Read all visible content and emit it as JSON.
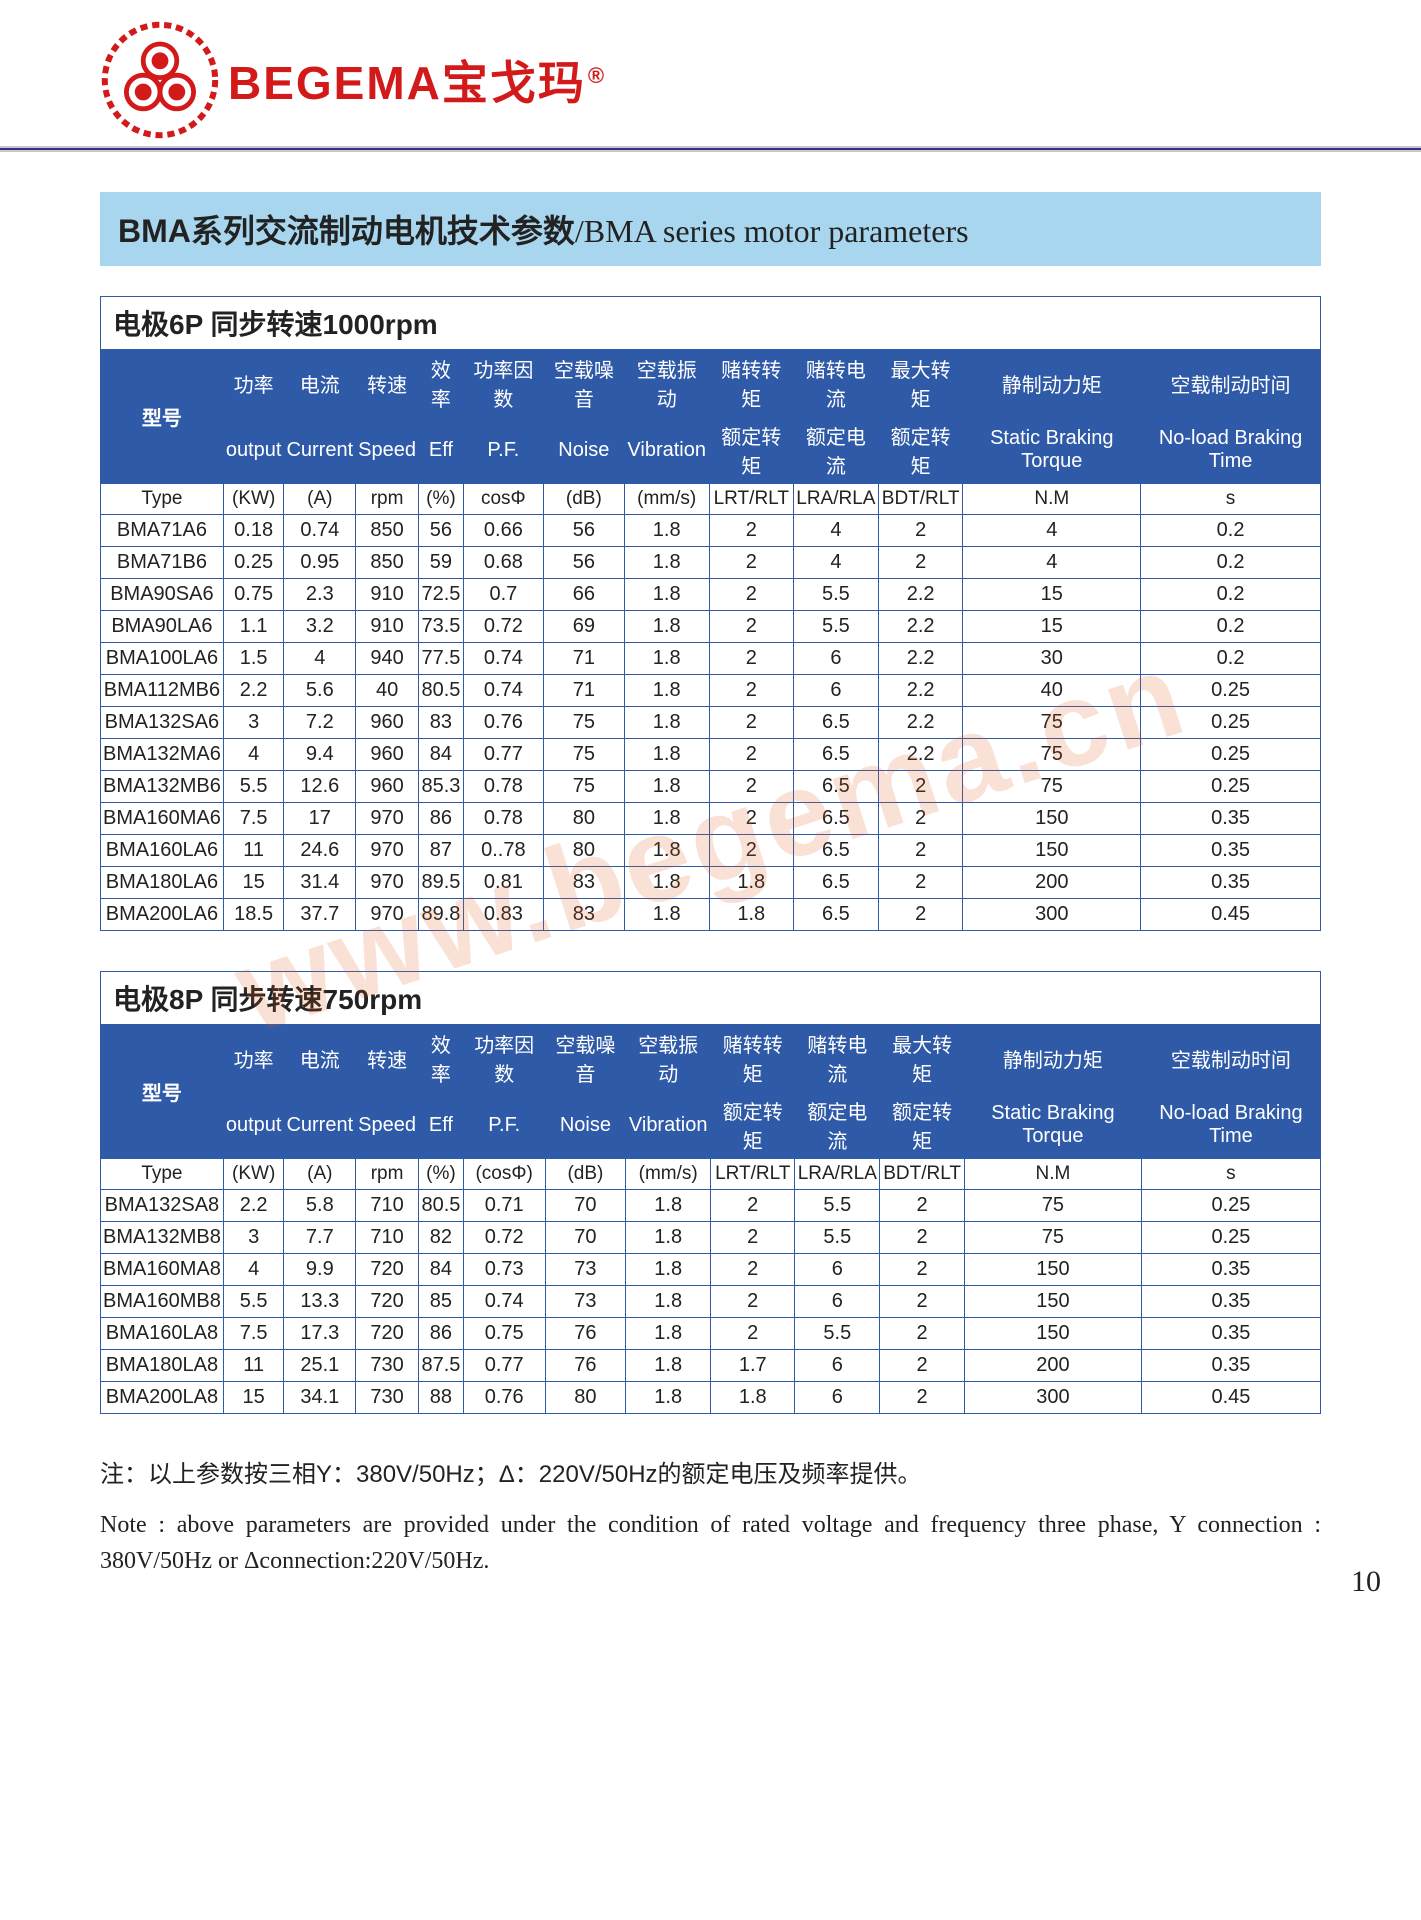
{
  "brand": {
    "en": "BEGEMA",
    "cn": "宝戈玛",
    "reg": "®",
    "color_brand": "#d21a1a",
    "color_rule": "#3a2f8a",
    "logo_stroke": "#d21a1a"
  },
  "title": {
    "cn": "BMA系列交流制动电机技术参数",
    "sep": "/",
    "en": "BMA series motor parameters",
    "band_bg": "#a7d6ee"
  },
  "theme": {
    "header_bg": "#2f5aa8",
    "header_fg": "#ffffff",
    "border": "#2f5aa8"
  },
  "watermark": "www.begema.cn",
  "page_number": "10",
  "notes": {
    "cn": "注：以上参数按三相Y：380V/50Hz；Δ：220V/50Hz的额定电压及频率提供。",
    "en": "Note : above parameters are provided under the condition of rated voltage and frequency three phase, Y connection : 380V/50Hz or Δconnection:220V/50Hz."
  },
  "header_labels": {
    "model_cn": "型号",
    "row1_cn": [
      "功率",
      "电流",
      "转速",
      "效率",
      "功率因数",
      "空载噪音",
      "空载振动",
      "赌转转矩",
      "赌转电流",
      "最大转矩",
      "静制动力矩",
      "空载制动时间"
    ],
    "row2_en": [
      "output",
      "Current",
      "Speed",
      "Eff",
      "P.F.",
      "Noise",
      "Vibration",
      "额定转矩",
      "额定电流",
      "额定转矩",
      "Static Braking Torque",
      "No-load Braking Time"
    ],
    "units": [
      "Type",
      "(KW)",
      "(A)",
      "rpm",
      "(%)",
      "cosΦ",
      "(dB)",
      "(mm/s)",
      "LRT/RLT",
      "LRA/RLA",
      "BDT/RLT",
      "N.M",
      "s"
    ],
    "units_8p": [
      "Type",
      "(KW)",
      "(A)",
      "rpm",
      "(%)",
      "(cosΦ)",
      "(dB)",
      "(mm/s)",
      "LRT/RLT",
      "LRA/RLA",
      "BDT/RLT",
      "N.M",
      "s"
    ]
  },
  "table6p": {
    "caption": "电极6P 同步转速1000rpm",
    "rows": [
      [
        "BMA71A6",
        "0.18",
        "0.74",
        "850",
        "56",
        "0.66",
        "56",
        "1.8",
        "2",
        "4",
        "2",
        "4",
        "0.2"
      ],
      [
        "BMA71B6",
        "0.25",
        "0.95",
        "850",
        "59",
        "0.68",
        "56",
        "1.8",
        "2",
        "4",
        "2",
        "4",
        "0.2"
      ],
      [
        "BMA90SA6",
        "0.75",
        "2.3",
        "910",
        "72.5",
        "0.7",
        "66",
        "1.8",
        "2",
        "5.5",
        "2.2",
        "15",
        "0.2"
      ],
      [
        "BMA90LA6",
        "1.1",
        "3.2",
        "910",
        "73.5",
        "0.72",
        "69",
        "1.8",
        "2",
        "5.5",
        "2.2",
        "15",
        "0.2"
      ],
      [
        "BMA100LA6",
        "1.5",
        "4",
        "940",
        "77.5",
        "0.74",
        "71",
        "1.8",
        "2",
        "6",
        "2.2",
        "30",
        "0.2"
      ],
      [
        "BMA112MB6",
        "2.2",
        "5.6",
        "40",
        "80.5",
        "0.74",
        "71",
        "1.8",
        "2",
        "6",
        "2.2",
        "40",
        "0.25"
      ],
      [
        "BMA132SA6",
        "3",
        "7.2",
        "960",
        "83",
        "0.76",
        "75",
        "1.8",
        "2",
        "6.5",
        "2.2",
        "75",
        "0.25"
      ],
      [
        "BMA132MA6",
        "4",
        "9.4",
        "960",
        "84",
        "0.77",
        "75",
        "1.8",
        "2",
        "6.5",
        "2.2",
        "75",
        "0.25"
      ],
      [
        "BMA132MB6",
        "5.5",
        "12.6",
        "960",
        "85.3",
        "0.78",
        "75",
        "1.8",
        "2",
        "6.5",
        "2",
        "75",
        "0.25"
      ],
      [
        "BMA160MA6",
        "7.5",
        "17",
        "970",
        "86",
        "0.78",
        "80",
        "1.8",
        "2",
        "6.5",
        "2",
        "150",
        "0.35"
      ],
      [
        "BMA160LA6",
        "11",
        "24.6",
        "970",
        "87",
        "0..78",
        "80",
        "1.8",
        "2",
        "6.5",
        "2",
        "150",
        "0.35"
      ],
      [
        "BMA180LA6",
        "15",
        "31.4",
        "970",
        "89.5",
        "0.81",
        "83",
        "1.8",
        "1.8",
        "6.5",
        "2",
        "200",
        "0.35"
      ],
      [
        "BMA200LA6",
        "18.5",
        "37.7",
        "970",
        "89.8",
        "0.83",
        "83",
        "1.8",
        "1.8",
        "6.5",
        "2",
        "300",
        "0.45"
      ]
    ]
  },
  "table8p": {
    "caption": "电极8P 同步转速750rpm",
    "rows": [
      [
        "BMA132SA8",
        "2.2",
        "5.8",
        "710",
        "80.5",
        "0.71",
        "70",
        "1.8",
        "2",
        "5.5",
        "2",
        "75",
        "0.25"
      ],
      [
        "BMA132MB8",
        "3",
        "7.7",
        "710",
        "82",
        "0.72",
        "70",
        "1.8",
        "2",
        "5.5",
        "2",
        "75",
        "0.25"
      ],
      [
        "BMA160MA8",
        "4",
        "9.9",
        "720",
        "84",
        "0.73",
        "73",
        "1.8",
        "2",
        "6",
        "2",
        "150",
        "0.35"
      ],
      [
        "BMA160MB8",
        "5.5",
        "13.3",
        "720",
        "85",
        "0.74",
        "73",
        "1.8",
        "2",
        "6",
        "2",
        "150",
        "0.35"
      ],
      [
        "BMA160LA8",
        "7.5",
        "17.3",
        "720",
        "86",
        "0.75",
        "76",
        "1.8",
        "2",
        "5.5",
        "2",
        "150",
        "0.35"
      ],
      [
        "BMA180LA8",
        "11",
        "25.1",
        "730",
        "87.5",
        "0.77",
        "76",
        "1.8",
        "1.7",
        "6",
        "2",
        "200",
        "0.35"
      ],
      [
        "BMA200LA8",
        "15",
        "34.1",
        "730",
        "88",
        "0.76",
        "80",
        "1.8",
        "1.8",
        "6",
        "2",
        "300",
        "0.45"
      ]
    ]
  }
}
